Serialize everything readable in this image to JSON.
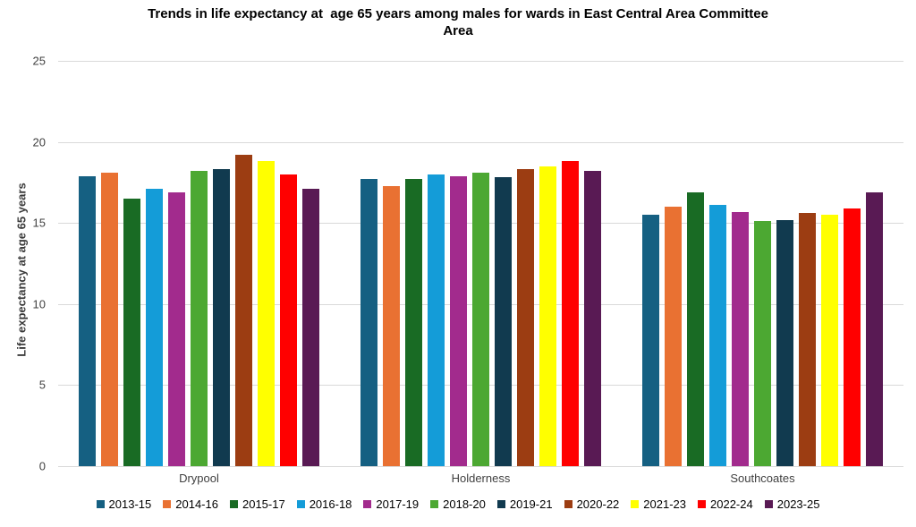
{
  "title_lines": [
    "Trends in life expectancy at  age 65 years among males for wards in East Central Area Committee",
    "Area"
  ],
  "chart_data": {
    "type": "bar",
    "title": "Trends in life expectancy at  age 65 years among males for wards in East Central Area Committee Area",
    "xlabel": "",
    "ylabel": "Life expectancy at  age 65 years",
    "ylim": [
      0,
      25
    ],
    "yticks": [
      0,
      5,
      10,
      15,
      20,
      25
    ],
    "grid": true,
    "legend_position": "bottom",
    "categories": [
      "Drypool",
      "Holderness",
      "Southcoates"
    ],
    "series": [
      {
        "name": "2013-15",
        "color": "#156082",
        "values": [
          17.9,
          17.7,
          15.5
        ]
      },
      {
        "name": "2014-16",
        "color": "#E97132",
        "values": [
          18.1,
          17.3,
          16.0
        ]
      },
      {
        "name": "2015-17",
        "color": "#196B24",
        "values": [
          16.5,
          17.7,
          16.9
        ]
      },
      {
        "name": "2016-18",
        "color": "#149CD8",
        "values": [
          17.1,
          18.0,
          16.1
        ]
      },
      {
        "name": "2017-19",
        "color": "#A22B8D",
        "values": [
          16.9,
          17.9,
          15.7
        ]
      },
      {
        "name": "2018-20",
        "color": "#4CA832",
        "values": [
          18.2,
          18.1,
          15.1
        ]
      },
      {
        "name": "2019-21",
        "color": "#113A4F",
        "values": [
          18.3,
          17.8,
          15.2
        ]
      },
      {
        "name": "2020-22",
        "color": "#9C3D12",
        "values": [
          19.2,
          18.3,
          15.6
        ]
      },
      {
        "name": "2021-23",
        "color": "#FFFF00",
        "values": [
          18.8,
          18.5,
          15.5
        ]
      },
      {
        "name": "2022-24",
        "color": "#FF0000",
        "values": [
          18.0,
          18.8,
          15.9
        ]
      },
      {
        "name": "2023-25",
        "color": "#591A54",
        "values": [
          17.1,
          18.2,
          16.9
        ]
      }
    ]
  }
}
